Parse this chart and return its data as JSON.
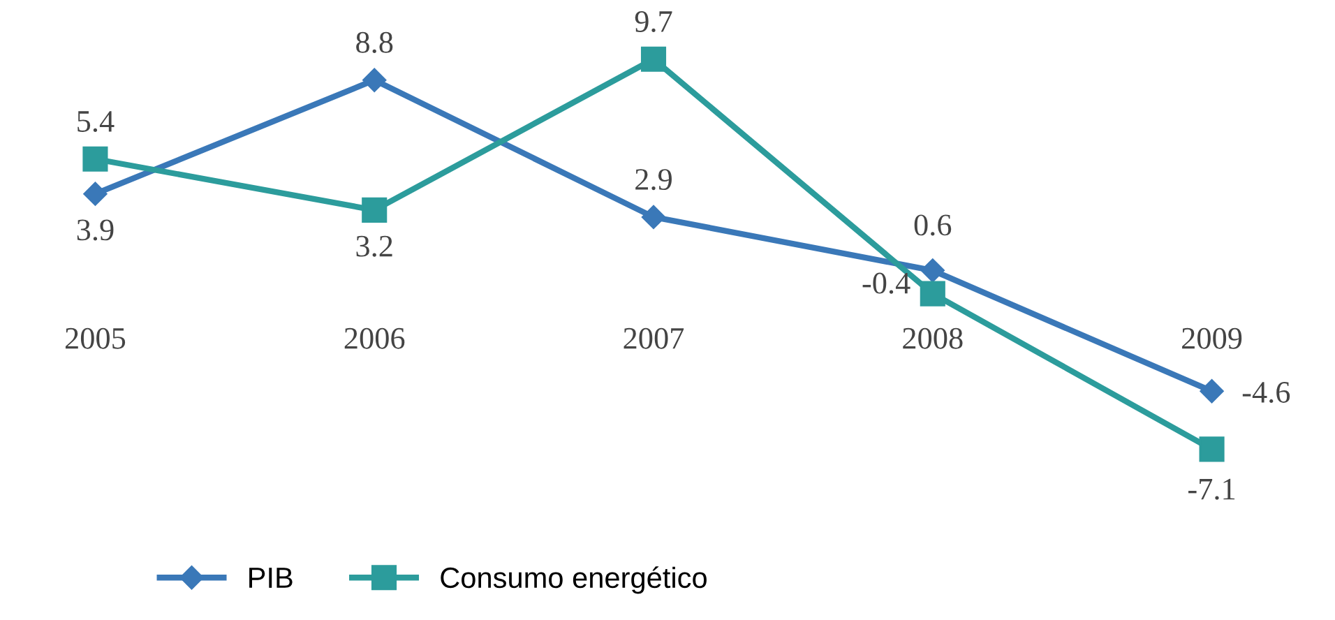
{
  "chart_data": {
    "type": "line",
    "categories": [
      "2005",
      "2006",
      "2007",
      "2008",
      "2009"
    ],
    "series": [
      {
        "name": "PIB",
        "color": "#3a78b8",
        "values": [
          3.9,
          8.8,
          2.9,
          0.6,
          -4.6
        ],
        "marker": "diamond"
      },
      {
        "name": "Consumo energético",
        "color": "#2c9c9c",
        "values": [
          5.4,
          3.2,
          9.7,
          -0.4,
          -7.1
        ],
        "marker": "square"
      }
    ],
    "data_labels": true,
    "legend": "bottom left",
    "grid": false,
    "line_style": "solid"
  }
}
